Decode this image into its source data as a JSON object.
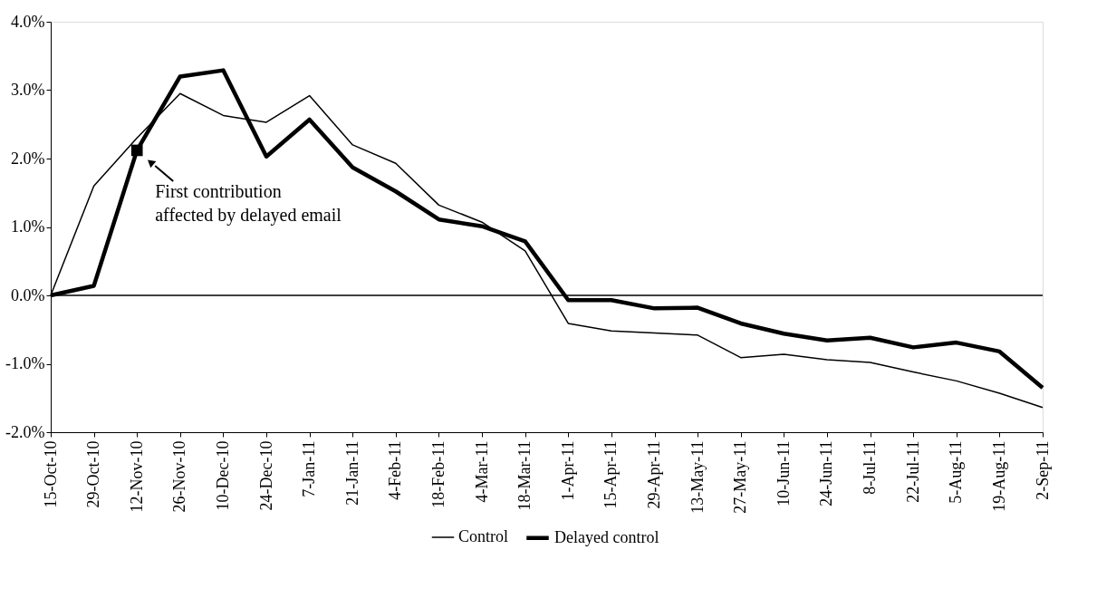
{
  "chart_data": {
    "type": "line",
    "categories": [
      "15-Oct-10",
      "29-Oct-10",
      "12-Nov-10",
      "26-Nov-10",
      "10-Dec-10",
      "24-Dec-10",
      "7-Jan-11",
      "21-Jan-11",
      "4-Feb-11",
      "18-Feb-11",
      "4-Mar-11",
      "18-Mar-11",
      "1-Apr-11",
      "15-Apr-11",
      "29-Apr-11",
      "13-May-11",
      "27-May-11",
      "10-Jun-11",
      "24-Jun-11",
      "8-Jul-11",
      "22-Jul-11",
      "5-Aug-11",
      "19-Aug-11",
      "2-Sep-11"
    ],
    "series": [
      {
        "name": "Control",
        "color": "#000000",
        "values": [
          0,
          1.6,
          2.3,
          2.95,
          2.63,
          2.53,
          2.92,
          2.2,
          1.93,
          1.32,
          1.07,
          0.65,
          -0.41,
          -0.52,
          -0.55,
          -0.58,
          -0.91,
          -0.86,
          -0.94,
          -0.98,
          -1.12,
          -1.25,
          -1.43,
          -1.64
        ]
      },
      {
        "name": "Delayed control",
        "color": "#000000",
        "values": [
          0,
          0.14,
          2.12,
          3.2,
          3.29,
          2.03,
          2.57,
          1.87,
          1.52,
          1.11,
          1.01,
          0.79,
          -0.07,
          -0.07,
          -0.19,
          -0.18,
          -0.41,
          -0.56,
          -0.66,
          -0.62,
          -0.76,
          -0.69,
          -0.82,
          -1.35
        ]
      }
    ],
    "ylim": [
      -2,
      4
    ],
    "yticks": [
      {
        "value": -2,
        "label": "-2.0%"
      },
      {
        "value": -1,
        "label": "-1.0%"
      },
      {
        "value": 0,
        "label": "0.0%"
      },
      {
        "value": 1,
        "label": "1.0%"
      },
      {
        "value": 2,
        "label": "2.0%"
      },
      {
        "value": 3,
        "label": "3.0%"
      },
      {
        "value": 4,
        "label": "4.0%"
      }
    ],
    "ref_lines": [
      {
        "axis": "y",
        "value": 0,
        "color": "#000000"
      }
    ],
    "annotations": [
      {
        "text": "First contribution\naffected by delayed email",
        "x": "12-Nov-10",
        "y": 2.12
      }
    ],
    "grid": false,
    "legend": "bottom",
    "marker": "none",
    "line_style": "solid"
  }
}
